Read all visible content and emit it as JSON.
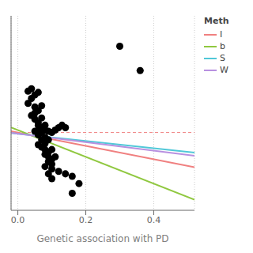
{
  "chart_data": {
    "type": "scatter",
    "xlabel": "Genetic association with PD",
    "xlim": [
      -0.02,
      0.52
    ],
    "ylim": [
      -0.6,
      1.0
    ],
    "xticks": [
      {
        "value": 0.0,
        "label": "0.0"
      },
      0.2,
      0.4
    ],
    "grid": true,
    "tick_labels": "x",
    "legend": "upper right",
    "legend_title": "Meth",
    "series": [
      {
        "type": "scatter",
        "color": "#000000",
        "marker": "circle",
        "x": [
          0.03,
          0.04,
          0.05,
          0.03,
          0.06,
          0.04,
          0.05,
          0.06,
          0.07,
          0.05,
          0.04,
          0.05,
          0.06,
          0.07,
          0.06,
          0.07,
          0.08,
          0.05,
          0.06,
          0.07,
          0.08,
          0.07,
          0.08,
          0.09,
          0.06,
          0.07,
          0.08,
          0.09,
          0.1,
          0.08,
          0.09,
          0.1,
          0.11,
          0.09,
          0.1,
          0.06,
          0.07,
          0.08,
          0.09,
          0.1,
          0.11,
          0.12,
          0.13,
          0.14,
          0.08,
          0.1,
          0.12,
          0.14,
          0.16,
          0.09,
          0.1,
          0.18,
          0.16,
          0.3,
          0.36
        ],
        "values": [
          0.28,
          0.32,
          0.35,
          0.38,
          0.37,
          0.4,
          0.25,
          0.22,
          0.26,
          0.2,
          0.18,
          0.15,
          0.12,
          0.16,
          0.1,
          0.08,
          0.1,
          0.05,
          0.02,
          0.04,
          0.0,
          -0.02,
          -0.05,
          -0.02,
          -0.06,
          -0.08,
          -0.1,
          -0.12,
          -0.1,
          -0.14,
          -0.16,
          -0.18,
          -0.16,
          -0.2,
          -0.22,
          0.06,
          0.06,
          0.06,
          0.05,
          0.04,
          0.06,
          0.08,
          0.1,
          0.08,
          -0.24,
          -0.26,
          -0.28,
          -0.3,
          -0.32,
          -0.3,
          -0.34,
          -0.38,
          -0.46,
          0.75,
          0.55
        ]
      },
      {
        "type": "line",
        "name": "I",
        "color": "#f08080",
        "x": [
          -0.02,
          0.52
        ],
        "values": [
          0.051,
          -0.246
        ]
      },
      {
        "type": "line",
        "name": "b",
        "color": "#90c840",
        "x": [
          -0.02,
          0.52
        ],
        "values": [
          0.082,
          -0.512
        ]
      },
      {
        "type": "line",
        "name": "S",
        "color": "#50c8d8",
        "x": [
          -0.02,
          0.52
        ],
        "values": [
          0.036,
          -0.126
        ]
      },
      {
        "type": "line",
        "name": "W",
        "color": "#b890e0",
        "x": [
          -0.02,
          0.52
        ],
        "values": [
          0.037,
          -0.152
        ]
      }
    ],
    "reference_lines": [
      {
        "y": 0.04,
        "color": "#f08080",
        "line_style": "dashed"
      }
    ]
  }
}
